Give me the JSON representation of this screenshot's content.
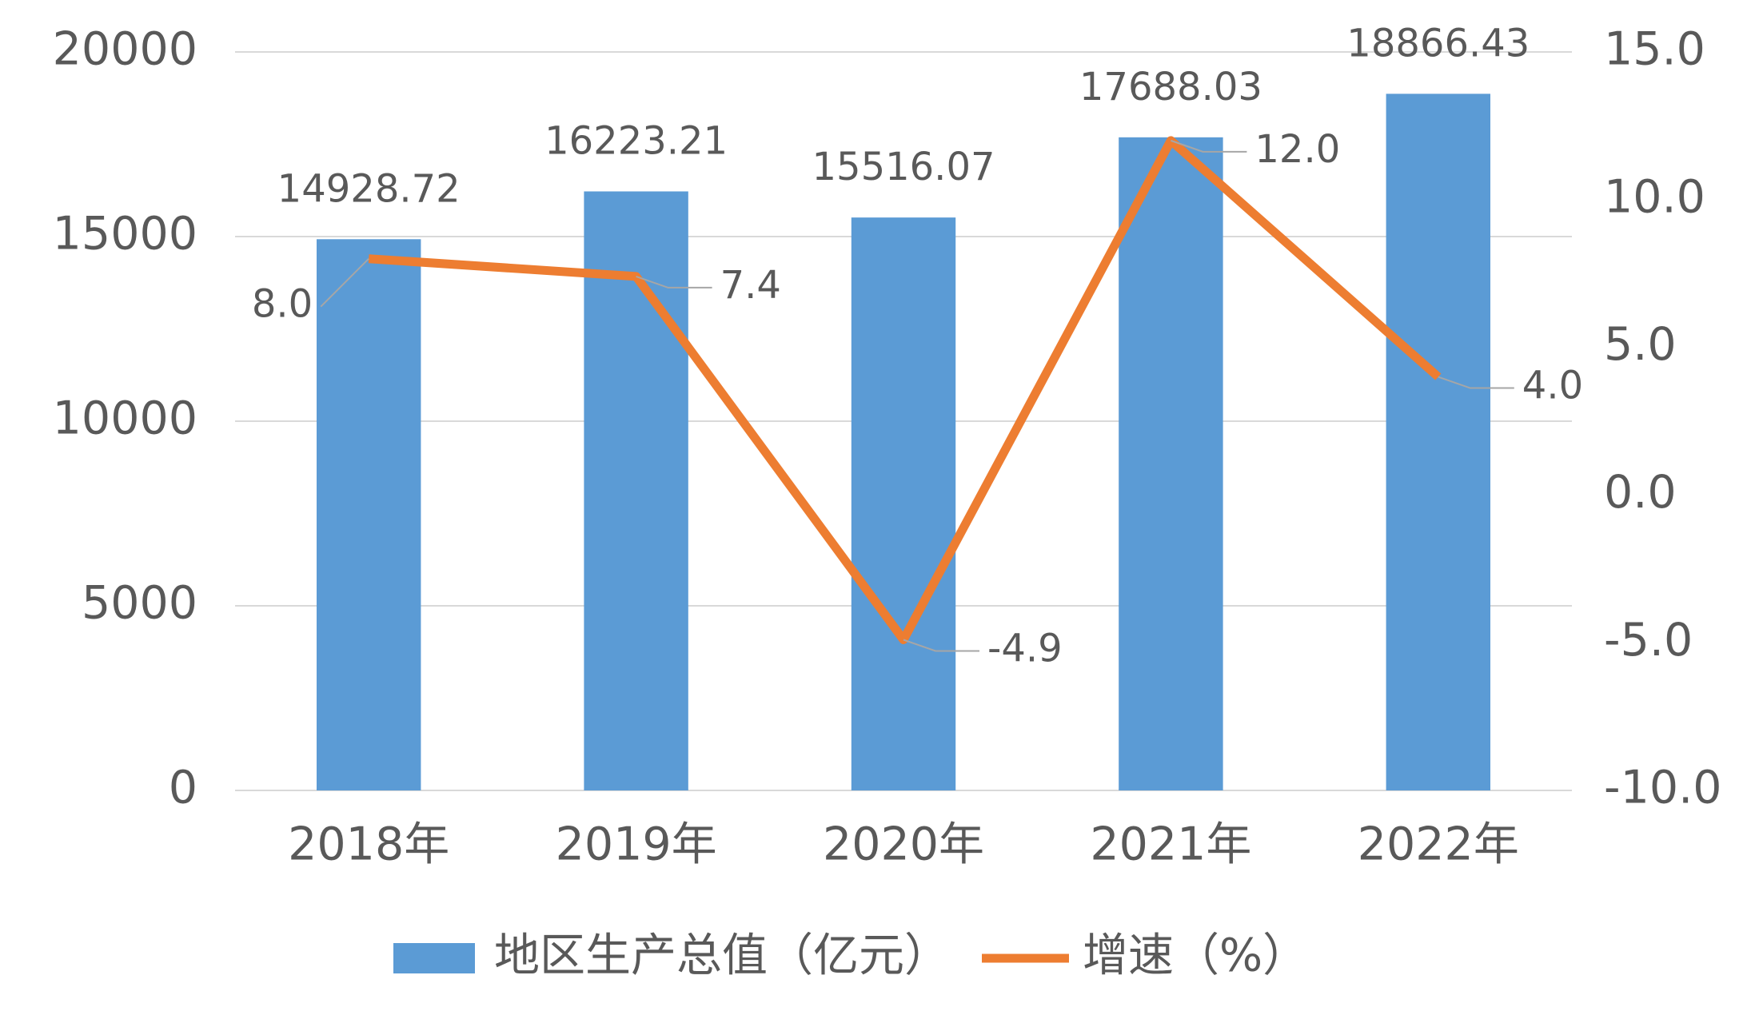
{
  "chart_data": {
    "type": "bar",
    "categories": [
      "2018年",
      "2019年",
      "2020年",
      "2021年",
      "2022年"
    ],
    "series": [
      {
        "name": "地区生产总值（亿元）",
        "type": "bar",
        "color": "#5b9bd5",
        "values": [
          14928.72,
          16223.21,
          15516.07,
          17688.03,
          18866.43
        ]
      },
      {
        "name": "增速（%）",
        "type": "line",
        "axis": "y2",
        "color": "#ed7d31",
        "values": [
          8.0,
          7.4,
          -4.9,
          12.0,
          4.0
        ],
        "value_labels": [
          "8.0",
          "7.4",
          "-4.9",
          "12.0",
          "4.0"
        ],
        "label_color": "#ff0000"
      }
    ],
    "ylim": [
      0,
      20000
    ],
    "yticks": [
      0,
      5000,
      10000,
      15000,
      20000
    ],
    "y2lim": [
      -10,
      15
    ],
    "y2ticks": [
      {
        "value": -10,
        "label": "-10.0"
      },
      {
        "value": -5,
        "label": "-5.0"
      },
      {
        "value": 0,
        "label": "0.0"
      },
      {
        "value": 5,
        "label": "5.0"
      },
      {
        "value": 10,
        "label": "10.0"
      },
      {
        "value": 15,
        "label": "15.0"
      }
    ],
    "grid": true,
    "legend": "bottom"
  }
}
